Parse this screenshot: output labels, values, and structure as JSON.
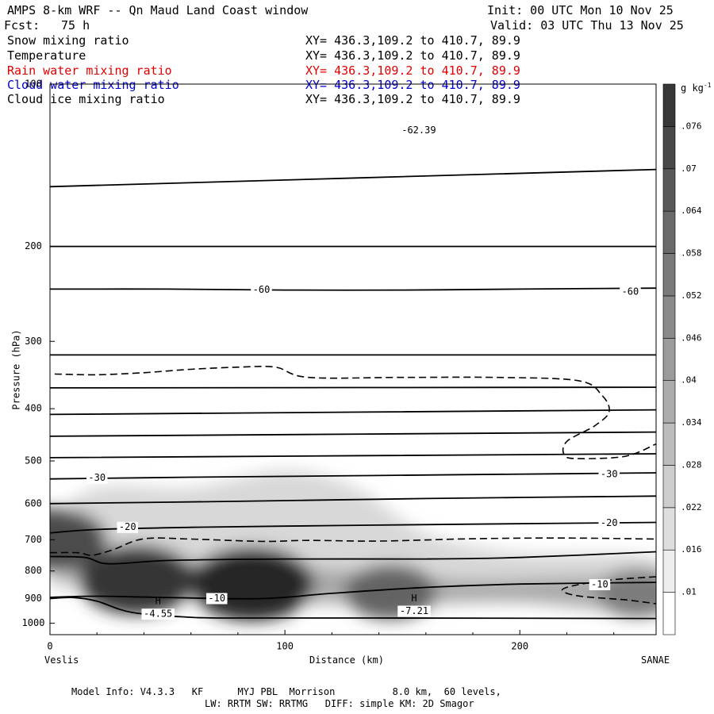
{
  "header": {
    "title": "AMPS 8-km WRF -- Qn Maud Land Coast window",
    "init": "Init: 00 UTC Mon 10 Nov 25",
    "fcst_label": "Fcst:",
    "fcst_value": "75 h",
    "valid": "Valid: 03 UTC Thu 13 Nov 25"
  },
  "variables": [
    {
      "name": "Snow mixing ratio",
      "xy": "XY= 436.3,109.2 to 410.7, 89.9",
      "color": "#000000"
    },
    {
      "name": "Temperature",
      "xy": "XY= 436.3,109.2 to 410.7, 89.9",
      "color": "#000000"
    },
    {
      "name": "Rain water mixing ratio",
      "xy": "XY= 436.3,109.2 to 410.7, 89.9",
      "color": "#e00000"
    },
    {
      "name": "Cloud water mixing ratio",
      "xy": "XY= 436.3,109.2 to 410.7, 89.9",
      "color": "#0000cc"
    },
    {
      "name": "Cloud ice mixing ratio",
      "xy": "XY= 436.3,109.2 to 410.7, 89.9",
      "color": "#000000"
    }
  ],
  "footer": {
    "line1": "Model Info: V4.3.3   KF      MYJ PBL  Morrison          8.0 km,  60 levels,",
    "line2": "LW: RRTM SW: RRTMG   DIFF: simple KM: 2D Smagor"
  },
  "chart_data": {
    "type": "heatmap",
    "xlabel": "Distance (km)",
    "ylabel": "Pressure (hPa)",
    "xlim": [
      0,
      258
    ],
    "ylim": [
      1050,
      100
    ],
    "y_log": true,
    "x_ticks": [
      "0",
      "100",
      "200"
    ],
    "x_tick_values": [
      0,
      100,
      200
    ],
    "y_ticks": [
      "100",
      "200",
      "300",
      "400",
      "500",
      "600",
      "700",
      "800",
      "900",
      "1000"
    ],
    "y_tick_values": [
      100,
      200,
      300,
      400,
      500,
      600,
      700,
      800,
      900,
      1000
    ],
    "x_left_label": "Veslis",
    "x_right_label": "SANAE",
    "colorbar": {
      "unit": "g kg",
      "unit_exp": "-1",
      "levels": [
        ".01",
        ".016",
        ".022",
        ".028",
        ".034",
        ".04",
        ".046",
        ".052",
        ".058",
        ".064",
        ".07",
        ".076"
      ]
    },
    "snow_maxima": [
      {
        "x": 37,
        "p": 830,
        "value": 0.07
      },
      {
        "x": 86,
        "p": 845,
        "value": 0.076
      },
      {
        "x": 145,
        "p": 875,
        "value": 0.05
      },
      {
        "x": 2,
        "p": 700,
        "value": 0.06
      },
      {
        "x": 250,
        "p": 880,
        "value": 0.04
      }
    ],
    "temperature_isotherms": [
      {
        "label": "-60",
        "points": [
          [
            0,
            240
          ],
          [
            50,
            240
          ],
          [
            100,
            241
          ],
          [
            150,
            241
          ],
          [
            200,
            240
          ],
          [
            258,
            239
          ]
        ]
      },
      {
        "label": "-30",
        "points": [
          [
            0,
            540
          ],
          [
            60,
            536
          ],
          [
            120,
            533
          ],
          [
            180,
            530
          ],
          [
            258,
            526
          ]
        ]
      },
      {
        "label": "-20",
        "points": [
          [
            0,
            680
          ],
          [
            20,
            670
          ],
          [
            60,
            664
          ],
          [
            120,
            659
          ],
          [
            180,
            655
          ],
          [
            258,
            650
          ]
        ]
      },
      {
        "label": "-10",
        "points": [
          [
            0,
            895
          ],
          [
            20,
            891
          ],
          [
            50,
            896
          ],
          [
            90,
            900
          ],
          [
            120,
            880
          ],
          [
            160,
            858
          ],
          [
            200,
            846
          ],
          [
            258,
            840
          ]
        ]
      }
    ],
    "temperature_other": [
      [
        [
          0,
          155
        ],
        [
          258,
          144
        ]
      ],
      [
        [
          0,
          200
        ],
        [
          258,
          200
        ]
      ],
      [
        [
          0,
          318
        ],
        [
          258,
          318
        ]
      ],
      [
        [
          0,
          366
        ],
        [
          258,
          365
        ]
      ],
      [
        [
          0,
          410
        ],
        [
          258,
          402
        ]
      ],
      [
        [
          0,
          450
        ],
        [
          258,
          442
        ]
      ],
      [
        [
          0,
          493
        ],
        [
          258,
          485
        ]
      ],
      [
        [
          0,
          600
        ],
        [
          80,
          594
        ],
        [
          160,
          587
        ],
        [
          258,
          581
        ]
      ],
      [
        [
          0,
          752
        ],
        [
          15,
          755
        ],
        [
          25,
          776
        ],
        [
          50,
          765
        ],
        [
          100,
          760
        ],
        [
          160,
          760
        ],
        [
          200,
          755
        ],
        [
          258,
          737
        ]
      ],
      [
        [
          0,
          900
        ],
        [
          10,
          896
        ],
        [
          20,
          910
        ],
        [
          35,
          955
        ],
        [
          60,
          975
        ],
        [
          80,
          978
        ],
        [
          140,
          978
        ],
        [
          258,
          980
        ]
      ]
    ],
    "dashed_contours": [
      [
        [
          2,
          345
        ],
        [
          20,
          346
        ],
        [
          40,
          343
        ],
        [
          60,
          338
        ],
        [
          80,
          335
        ],
        [
          96,
          335
        ],
        [
          110,
          350
        ],
        [
          150,
          350
        ],
        [
          190,
          350
        ],
        [
          225,
          355
        ],
        [
          235,
          378
        ],
        [
          238,
          405
        ],
        [
          232,
          430
        ],
        [
          220,
          460
        ],
        [
          219,
          488
        ],
        [
          225,
          495
        ],
        [
          245,
          490
        ],
        [
          258,
          465
        ]
      ],
      [
        [
          0,
          740
        ],
        [
          12,
          740
        ],
        [
          18,
          748
        ],
        [
          27,
          730
        ],
        [
          40,
          697
        ],
        [
          60,
          698
        ],
        [
          90,
          705
        ],
        [
          110,
          702
        ],
        [
          140,
          704
        ],
        [
          180,
          697
        ],
        [
          220,
          695
        ],
        [
          258,
          698
        ]
      ],
      [
        [
          258,
          820
        ],
        [
          240,
          830
        ],
        [
          225,
          848
        ],
        [
          218,
          868
        ],
        [
          225,
          890
        ],
        [
          245,
          905
        ],
        [
          258,
          920
        ]
      ]
    ],
    "annotations": [
      {
        "label": "H",
        "value": "-4.55",
        "x": 46,
        "p": 962
      },
      {
        "label": "H",
        "value": "-7.21",
        "x": 155,
        "p": 950
      },
      {
        "label": "",
        "value": "-10",
        "x": 234,
        "p": 848
      },
      {
        "label": "",
        "value": "-62.39",
        "x": 157,
        "p": 122
      }
    ]
  }
}
